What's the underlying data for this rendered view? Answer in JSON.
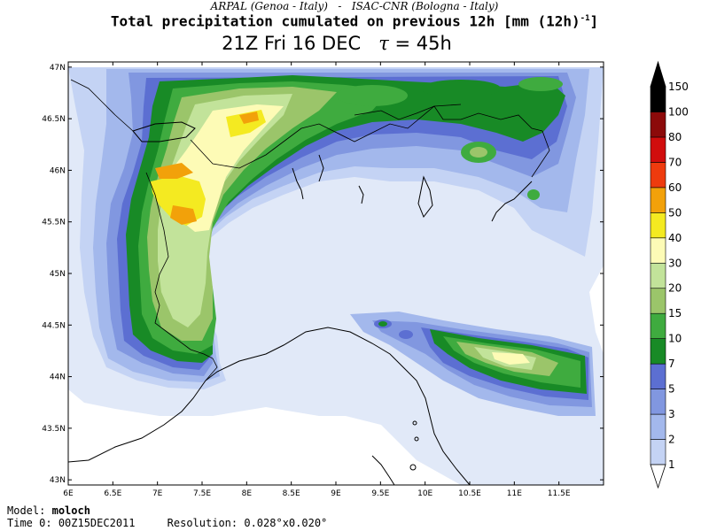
{
  "header": {
    "credits_left": "ARPAL (Genoa - Italy)",
    "credits_sep": "-",
    "credits_right": "ISAC-CNR (Bologna - Italy)",
    "title_main": "Total precipitation cumulated on previous 12h [mm (12h)",
    "title_exp": "-1",
    "title_end": "]",
    "valid_time": "21Z Fri 16 DEC",
    "tau_symbol": "τ",
    "tau_value": "= 45h"
  },
  "axes": {
    "lon_labels": [
      "6E",
      "6.5E",
      "7E",
      "7.5E",
      "8E",
      "8.5E",
      "9E",
      "9.5E",
      "10E",
      "10.5E",
      "11E",
      "11.5E"
    ],
    "lat_labels": [
      "47N",
      "46.5N",
      "46N",
      "45.5N",
      "45N",
      "44.5N",
      "44N",
      "43.5N",
      "43N"
    ],
    "lon_range": [
      6,
      12
    ],
    "lat_range": [
      42.95,
      47.05
    ]
  },
  "legend": {
    "levels": [
      "1",
      "2",
      "3",
      "5",
      "7",
      "10",
      "15",
      "20",
      "30",
      "40",
      "50",
      "60",
      "70",
      "80",
      "100",
      "150"
    ],
    "colors": [
      "#e1e9f8",
      "#c4d3f4",
      "#a3b8ec",
      "#8197e0",
      "#5c6fd2",
      "#188a26",
      "#3fab3f",
      "#9bc56a",
      "#c2e39a",
      "#fdfbb6",
      "#f4ea21",
      "#f2a10a",
      "#ee3b0e",
      "#d10d0d",
      "#8c0a0a",
      "#000000"
    ]
  },
  "footer": {
    "model_label": "Model:",
    "model_value": "moloch",
    "time0_label": "Time 0:",
    "time0_value": "00Z15DEC2011",
    "resolution_label": "Resolution:",
    "resolution_value": "0.028°x0.020°"
  }
}
